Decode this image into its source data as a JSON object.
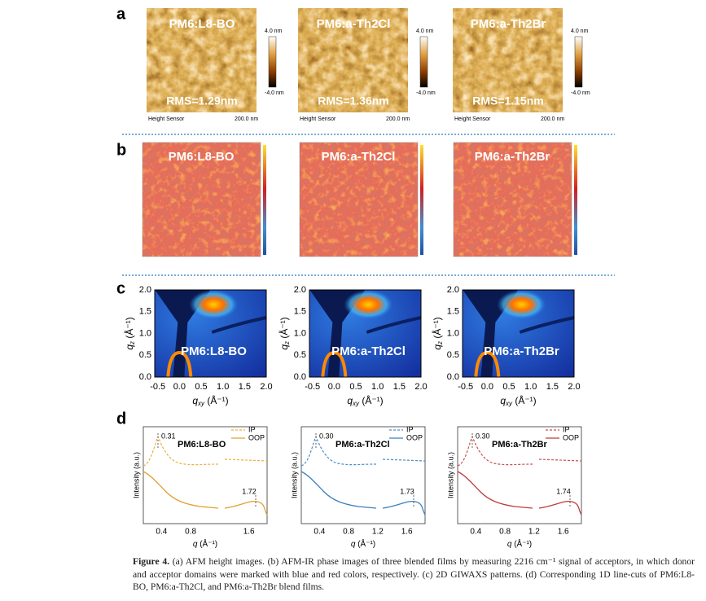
{
  "figure": {
    "a": {
      "label": "a",
      "images": [
        {
          "title": "PM6:L8-BO",
          "rms": "RMS=1.29nm"
        },
        {
          "title": "PM6:a-Th2Cl",
          "rms": "RMS=1.36nm"
        },
        {
          "title": "PM6:a-Th2Br",
          "rms": "RMS=1.15nm"
        }
      ],
      "scale_max": "4.0 nm",
      "scale_min": "-4.0 nm",
      "sensor": "Height Sensor",
      "scale_bar": "200.0 nm"
    },
    "b": {
      "label": "b",
      "images": [
        {
          "title": "PM6:L8-BO"
        },
        {
          "title": "PM6:a-Th2Cl"
        },
        {
          "title": "PM6:a-Th2Br"
        }
      ]
    },
    "c": {
      "label": "c",
      "images": [
        {
          "title": "PM6:L8-BO"
        },
        {
          "title": "PM6:a-Th2Cl"
        },
        {
          "title": "PM6:a-Th2Br"
        }
      ],
      "x_label": {
        "symbol": "q",
        "sub": "xy",
        "unit": " (Å⁻¹)"
      },
      "y_label": {
        "symbol": "q",
        "sub": "z",
        "unit": " (Å⁻¹)"
      },
      "x_ticks": [
        "-0.5",
        "0.0",
        "0.5",
        "1.0",
        "1.5",
        "2.0"
      ],
      "y_ticks": [
        "0.0",
        "0.5",
        "1.0",
        "1.5",
        "2.0"
      ]
    },
    "d": {
      "label": "d",
      "legend": [
        "IP",
        "OOP"
      ],
      "y_label": "Intensity (a.u.)",
      "x_label": {
        "symbol": "q",
        "unit": " (Å⁻¹)"
      },
      "plots": [
        {
          "title": "PM6:L8-BO",
          "peak_ip": "0.31",
          "peak_oop": "1.72",
          "x_ticks": [
            "0.4",
            "0.8",
            "1.6"
          ]
        },
        {
          "title": "PM6:a-Th2Cl",
          "peak_ip": "0.30",
          "peak_oop": "1.73",
          "x_ticks": [
            "0.4",
            "0.8",
            "1.2",
            "1.6"
          ]
        },
        {
          "title": "PM6:a-Th2Br",
          "peak_ip": "0.30",
          "peak_oop": "1.74",
          "x_ticks": [
            "0.4",
            "0.8",
            "1.2",
            "1.6"
          ]
        }
      ]
    }
  },
  "caption": {
    "lead": "Figure 4.",
    "text": " (a) AFM height images. (b) AFM-IR phase images of three blended films by measuring 2216 cm⁻¹ signal of acceptors, in which donor and acceptor domains were marked with blue and red colors, respectively. (c) 2D GIWAXS patterns. (d) Corresponding 1D line-cuts of PM6:L8-BO, PM6:a-Th2Cl, and PM6:a-Th2Br blend films."
  }
}
